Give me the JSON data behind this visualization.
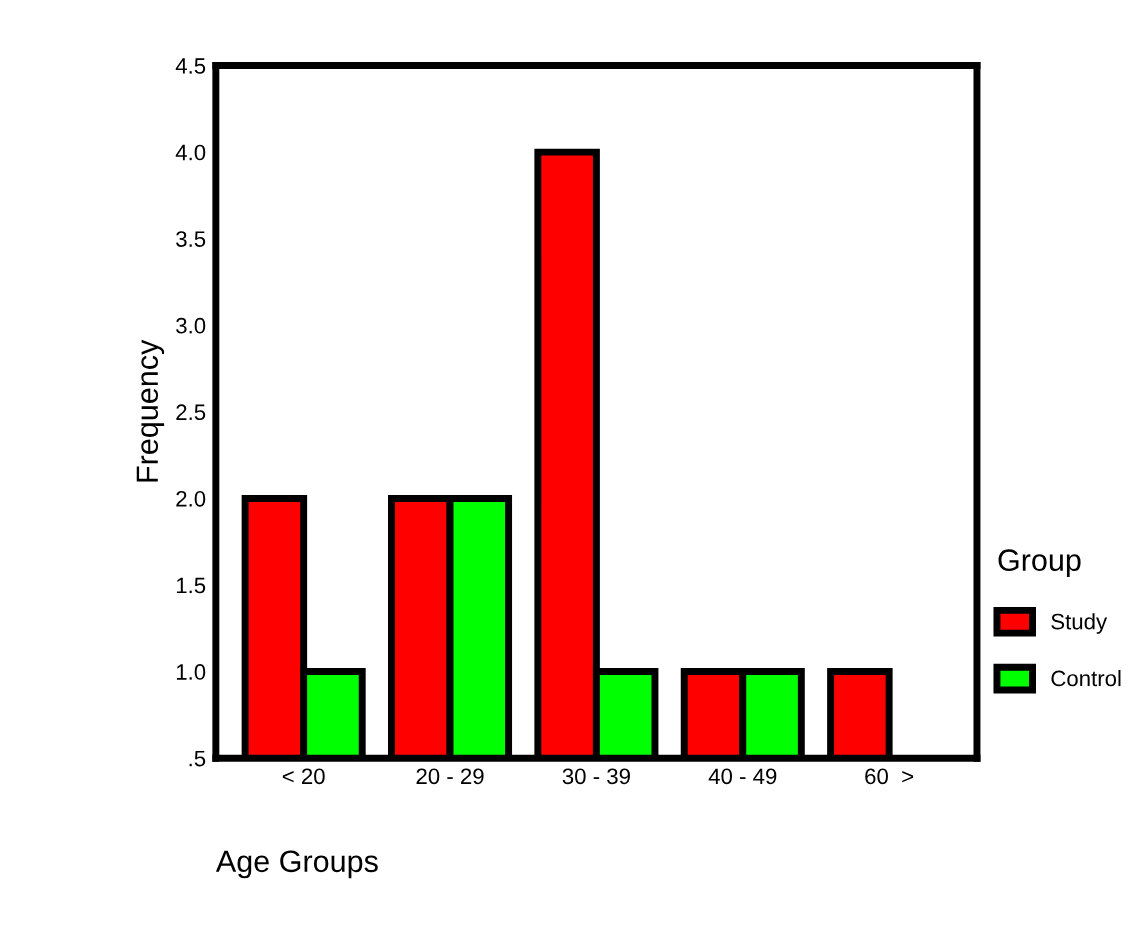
{
  "chart_data": {
    "type": "bar",
    "xlabel": "Age Groups",
    "ylabel": "Frequency",
    "legend_title": "Group",
    "categories": [
      "< 20",
      "20 - 29",
      "30 - 39",
      "40 - 49",
      "60  >"
    ],
    "series": [
      {
        "name": "Study",
        "color": "#ff0000",
        "values": [
          2,
          2,
          4,
          1,
          1
        ]
      },
      {
        "name": "Control",
        "color": "#00ff00",
        "values": [
          1,
          2,
          1,
          1,
          null
        ]
      }
    ],
    "ylim": [
      0.5,
      4.5
    ],
    "yticks": [
      {
        "value": 0.5,
        "label": ".5"
      },
      {
        "value": 1.0,
        "label": "1.0"
      },
      {
        "value": 1.5,
        "label": "1.5"
      },
      {
        "value": 2.0,
        "label": "2.0"
      },
      {
        "value": 2.5,
        "label": "2.5"
      },
      {
        "value": 3.0,
        "label": "3.0"
      },
      {
        "value": 3.5,
        "label": "3.5"
      },
      {
        "value": 4.0,
        "label": "4.0"
      },
      {
        "value": 4.5,
        "label": "4.5"
      }
    ],
    "legend": "right",
    "grid": false
  }
}
